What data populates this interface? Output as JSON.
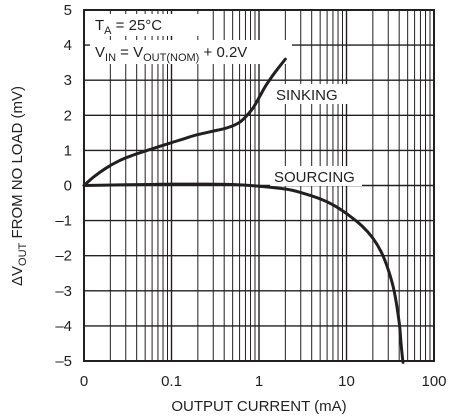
{
  "chart_data": {
    "type": "line",
    "xlabel": "OUTPUT CURRENT (mA)",
    "ylabel_parts": {
      "pre": "ΔV",
      "sub": "OUT",
      "post": " FROM NO LOAD (mV)"
    },
    "xlim": [
      0.01,
      100
    ],
    "ylim": [
      -5,
      5
    ],
    "x_scale": "log (first decade labeled 0)",
    "grid": true,
    "x_ticks": [
      {
        "value": 0.01,
        "label": "0"
      },
      {
        "value": 0.1,
        "label": "0.1"
      },
      {
        "value": 1,
        "label": "1"
      },
      {
        "value": 10,
        "label": "10"
      },
      {
        "value": 100,
        "label": "100"
      }
    ],
    "y_ticks": [
      {
        "value": 5,
        "label": "5"
      },
      {
        "value": 4,
        "label": "4"
      },
      {
        "value": 3,
        "label": "3"
      },
      {
        "value": 2,
        "label": "2"
      },
      {
        "value": 1,
        "label": "1"
      },
      {
        "value": 0,
        "label": "0"
      },
      {
        "value": -1,
        "label": "–1"
      },
      {
        "value": -2,
        "label": "–2"
      },
      {
        "value": -3,
        "label": "–3"
      },
      {
        "value": -4,
        "label": "–4"
      },
      {
        "value": -5,
        "label": "–5"
      }
    ],
    "annotations": {
      "line1": {
        "pre": "T",
        "sub": "A",
        "post": " = 25°C"
      },
      "line2": {
        "a": "V",
        "a_sub": "IN",
        "mid": " = V",
        "b_sub": "OUT(NOM)",
        "post": " + 0.2V"
      }
    },
    "series": [
      {
        "name": "SINKING",
        "x": [
          0.01,
          0.013,
          0.018,
          0.025,
          0.035,
          0.05,
          0.07,
          0.1,
          0.15,
          0.2,
          0.3,
          0.4,
          0.5,
          0.6,
          0.7,
          0.85,
          1.0,
          1.2,
          1.5,
          2.0
        ],
        "y": [
          0.0,
          0.25,
          0.5,
          0.7,
          0.85,
          0.98,
          1.1,
          1.22,
          1.36,
          1.45,
          1.55,
          1.62,
          1.7,
          1.8,
          1.95,
          2.2,
          2.5,
          2.85,
          3.2,
          3.6
        ]
      },
      {
        "name": "SOURCING",
        "x": [
          0.01,
          0.03,
          0.06,
          0.1,
          0.2,
          0.5,
          1,
          2,
          3,
          5,
          7,
          10,
          15,
          20,
          25,
          30,
          35,
          40,
          42,
          44,
          44.5
        ],
        "y": [
          0.0,
          0.02,
          0.03,
          0.04,
          0.04,
          0.03,
          -0.02,
          -0.1,
          -0.2,
          -0.38,
          -0.55,
          -0.8,
          -1.15,
          -1.5,
          -1.9,
          -2.4,
          -3.0,
          -3.9,
          -4.5,
          -5.0,
          -5.0
        ]
      }
    ]
  }
}
